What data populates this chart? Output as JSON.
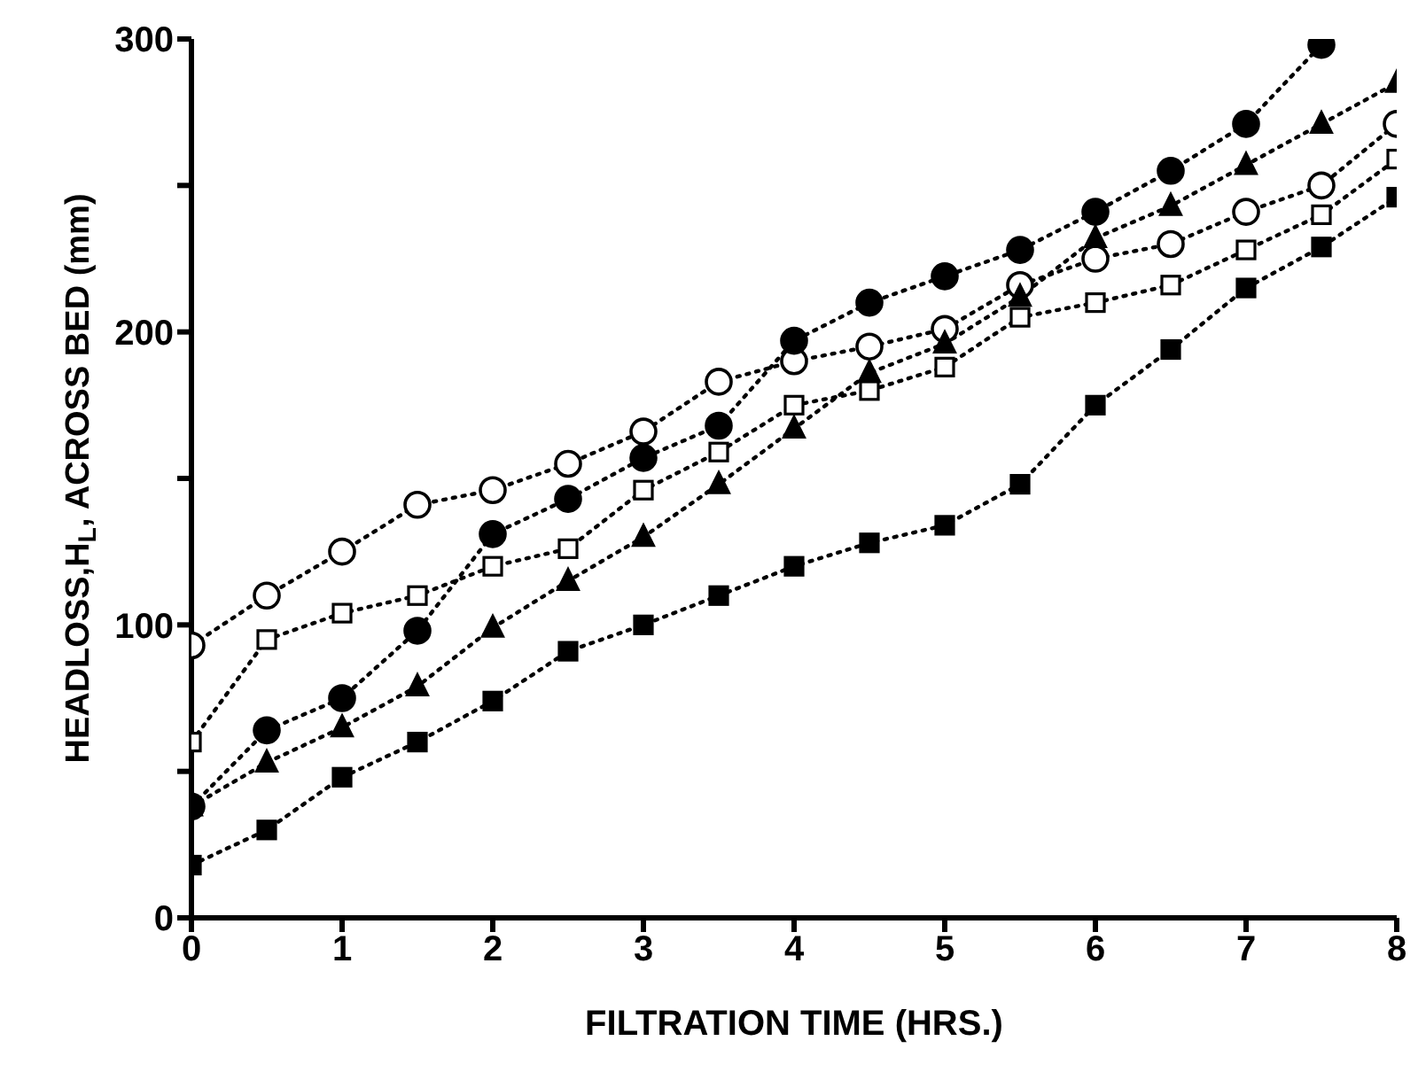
{
  "chart_data": {
    "type": "line",
    "xlabel": "FILTRATION TIME (HRS.)",
    "ylabel": "HEADLOSS,H$_{L}$, ACROSS BED (mm)",
    "x": [
      0,
      0.5,
      1,
      1.5,
      2,
      2.5,
      3,
      3.5,
      4,
      4.5,
      5,
      5.5,
      6,
      6.5,
      7,
      7.5,
      8
    ],
    "series": [
      {
        "color": "#000000",
        "marker": "circle-open",
        "values": [
          93,
          110,
          125,
          141,
          146,
          155,
          166,
          183,
          190,
          195,
          201,
          216,
          225,
          230,
          241,
          250,
          271
        ]
      },
      {
        "color": "#000000",
        "marker": "circle",
        "values": [
          38,
          64,
          75,
          98,
          131,
          143,
          157,
          168,
          197,
          210,
          219,
          228,
          241,
          255,
          271,
          298,
          null
        ]
      },
      {
        "color": "#000000",
        "marker": "square-open",
        "values": [
          60,
          95,
          104,
          110,
          120,
          126,
          146,
          159,
          175,
          180,
          188,
          205,
          210,
          216,
          228,
          240,
          259
        ]
      },
      {
        "color": "#000000",
        "marker": "triangle",
        "values": [
          38,
          53,
          65,
          79,
          99,
          115,
          130,
          148,
          167,
          186,
          196,
          212,
          232,
          243,
          257,
          271,
          285
        ]
      },
      {
        "color": "#000000",
        "marker": "square",
        "values": [
          18,
          30,
          48,
          60,
          74,
          91,
          100,
          110,
          120,
          128,
          134,
          148,
          175,
          194,
          215,
          229,
          246
        ]
      }
    ],
    "xlim": [
      0,
      8
    ],
    "xticks": [
      0,
      1,
      2,
      3,
      4,
      5,
      6,
      7,
      8
    ],
    "ylim": [
      0,
      300
    ],
    "yticks": [
      0,
      {
        "value": 50,
        "label": null
      },
      100,
      {
        "value": 150,
        "label": null
      },
      200,
      {
        "value": 250,
        "label": null
      },
      300
    ],
    "grid": false,
    "legend": false,
    "line_style": "dotted"
  }
}
